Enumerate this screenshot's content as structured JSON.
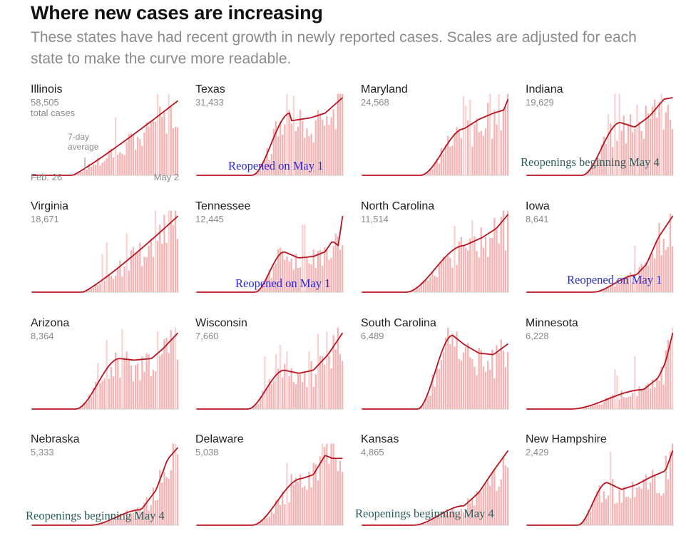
{
  "header": {
    "title": "Where new cases are increasing",
    "subtitle": "These states have had recent growth in newly reported cases. Scales are adjusted for each state to make the curve more readable."
  },
  "legend": {
    "avg_label_line1": "7-day",
    "avg_label_line2": "average",
    "total_cases_label": "total cases",
    "x_start": "Feb. 26",
    "x_end": "May 2"
  },
  "colors": {
    "bar": "#f6b3b3",
    "bar_spike": "#f9d3d3",
    "line": "#b8141f",
    "baseline": "#cccccc",
    "annot_blue": "#2a29d8",
    "annot_teal": "#2e5b5b"
  },
  "annotations": {
    "texas": "Reopened on May 1",
    "indiana": "Reopenings beginning May 4",
    "tennessee": "Reopened on May 1",
    "iowa": "Reopened on May 1",
    "nebraska": "Reopenings beginning May 4",
    "kansas": "Reopenings beginning May 4"
  },
  "chart_data": {
    "type": "bar",
    "x_range": [
      "Feb. 26",
      "May 2"
    ],
    "panels": [
      {
        "state": "Illinois",
        "total": "58,505",
        "shape": {
          "s": 0.28,
          "e": 1,
          "m": 0.96,
          "p": 1.1
        }
      },
      {
        "state": "Texas",
        "total": "31,433",
        "shape": {
          "s": 0.38,
          "e": 0.64,
          "m": 0.8,
          "k": [
            [
              0.64,
              0.7
            ],
            [
              0.78,
              0.74
            ],
            [
              0.88,
              0.8
            ],
            [
              1,
              1
            ]
          ]
        }
      },
      {
        "state": "Maryland",
        "total": "24,568",
        "shape": {
          "s": 0.4,
          "e": 0.7,
          "m": 0.6,
          "k": [
            [
              0.7,
              0.6
            ],
            [
              0.8,
              0.72
            ],
            [
              0.9,
              0.8
            ],
            [
              0.97,
              0.84
            ],
            [
              1,
              0.98
            ]
          ]
        }
      },
      {
        "state": "Indiana",
        "total": "19,629",
        "shape": {
          "s": 0.38,
          "e": 0.64,
          "m": 0.68,
          "k": [
            [
              0.64,
              0.68
            ],
            [
              0.74,
              0.62
            ],
            [
              0.84,
              0.76
            ],
            [
              0.94,
              0.98
            ],
            [
              1,
              1
            ]
          ]
        }
      },
      {
        "state": "Virginia",
        "total": "18,671",
        "shape": {
          "s": 0.35,
          "e": 1,
          "m": 0.98,
          "p": 1.15
        }
      },
      {
        "state": "Tennessee",
        "total": "12,445",
        "shape": {
          "s": 0.4,
          "e": 0.6,
          "m": 0.52,
          "k": [
            [
              0.6,
              0.52
            ],
            [
              0.7,
              0.44
            ],
            [
              0.8,
              0.46
            ],
            [
              0.88,
              0.52
            ],
            [
              0.93,
              0.66
            ],
            [
              0.97,
              0.6
            ],
            [
              1,
              0.98
            ]
          ]
        }
      },
      {
        "state": "North Carolina",
        "total": "11,514",
        "shape": {
          "s": 0.3,
          "e": 0.7,
          "m": 0.6,
          "k": [
            [
              0.7,
              0.6
            ],
            [
              0.82,
              0.7
            ],
            [
              0.92,
              0.82
            ],
            [
              1,
              1
            ]
          ]
        }
      },
      {
        "state": "Iowa",
        "total": "8,641",
        "shape": {
          "s": 0.45,
          "e": 0.75,
          "m": 0.22,
          "k": [
            [
              0.75,
              0.22
            ],
            [
              0.82,
              0.36
            ],
            [
              0.9,
              0.7
            ],
            [
              1,
              0.98
            ]
          ]
        }
      },
      {
        "state": "Arizona",
        "total": "8,364",
        "shape": {
          "s": 0.3,
          "e": 0.6,
          "m": 0.65,
          "k": [
            [
              0.6,
              0.65
            ],
            [
              0.7,
              0.63
            ],
            [
              0.82,
              0.65
            ],
            [
              0.9,
              0.78
            ],
            [
              1,
              0.98
            ]
          ]
        }
      },
      {
        "state": "Wisconsin",
        "total": "7,660",
        "shape": {
          "s": 0.35,
          "e": 0.6,
          "m": 0.5,
          "k": [
            [
              0.6,
              0.5
            ],
            [
              0.7,
              0.46
            ],
            [
              0.8,
              0.5
            ],
            [
              0.9,
              0.7
            ],
            [
              1,
              0.98
            ]
          ]
        }
      },
      {
        "state": "South Carolina",
        "total": "6,489",
        "shape": {
          "s": 0.38,
          "e": 0.62,
          "m": 0.95,
          "k": [
            [
              0.62,
              0.95
            ],
            [
              0.7,
              0.83
            ],
            [
              0.8,
              0.72
            ],
            [
              0.9,
              0.7
            ],
            [
              1,
              0.84
            ]
          ]
        }
      },
      {
        "state": "Minnesota",
        "total": "6,228",
        "shape": {
          "s": 0.3,
          "e": 0.8,
          "m": 0.25,
          "k": [
            [
              0.8,
              0.25
            ],
            [
              0.9,
              0.4
            ],
            [
              0.95,
              0.6
            ],
            [
              1,
              0.98
            ]
          ]
        }
      },
      {
        "state": "Nebraska",
        "total": "5,333",
        "shape": {
          "s": 0.4,
          "e": 0.75,
          "m": 0.2,
          "k": [
            [
              0.75,
              0.2
            ],
            [
              0.85,
              0.45
            ],
            [
              0.93,
              0.85
            ],
            [
              1,
              1
            ]
          ]
        }
      },
      {
        "state": "Delaware",
        "total": "5,038",
        "shape": {
          "s": 0.38,
          "e": 0.72,
          "m": 0.6,
          "k": [
            [
              0.72,
              0.6
            ],
            [
              0.8,
              0.65
            ],
            [
              0.88,
              0.9
            ],
            [
              0.93,
              0.86
            ],
            [
              1,
              0.86
            ]
          ]
        }
      },
      {
        "state": "Kansas",
        "total": "4,865",
        "shape": {
          "s": 0.35,
          "e": 0.7,
          "m": 0.25,
          "k": [
            [
              0.7,
              0.25
            ],
            [
              0.8,
              0.42
            ],
            [
              0.9,
              0.7
            ],
            [
              1,
              0.96
            ]
          ]
        }
      },
      {
        "state": "New Hampshire",
        "total": "2,429",
        "shape": {
          "s": 0.35,
          "e": 0.55,
          "m": 0.55,
          "k": [
            [
              0.55,
              0.55
            ],
            [
              0.65,
              0.46
            ],
            [
              0.75,
              0.52
            ],
            [
              0.85,
              0.62
            ],
            [
              0.95,
              0.7
            ],
            [
              1,
              0.96
            ]
          ]
        }
      }
    ]
  }
}
